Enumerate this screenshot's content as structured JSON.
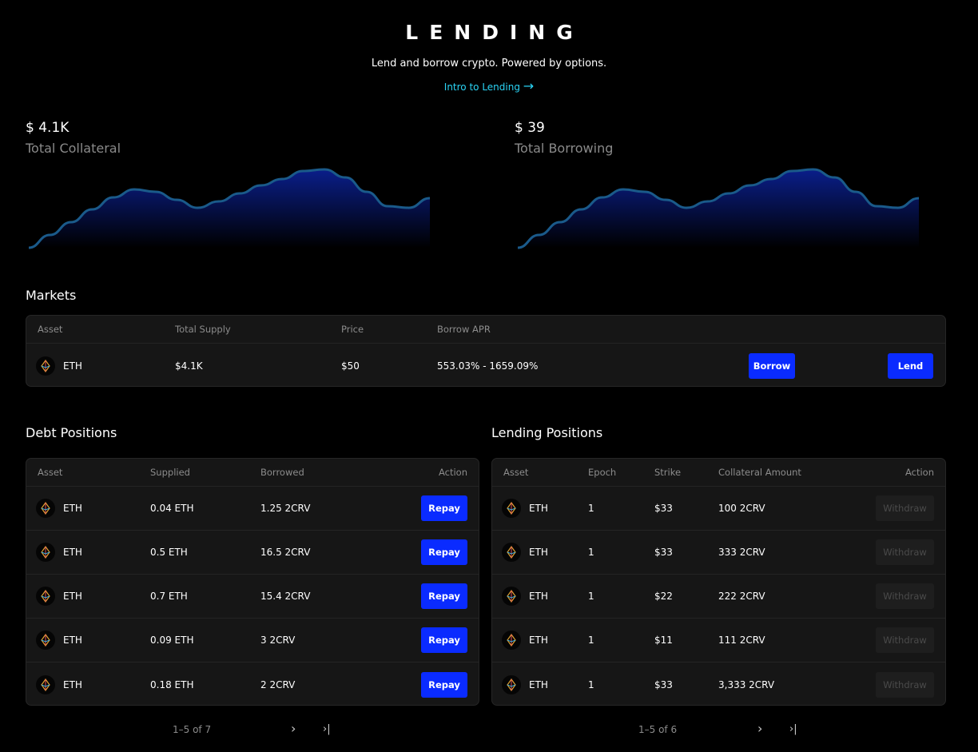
{
  "header": {
    "title": "LENDING",
    "subtitle": "Lend and borrow crypto. Powered by options.",
    "intro_link": "Intro to Lending"
  },
  "stats": [
    {
      "value": "$ 4.1K",
      "label": "Total Collateral"
    },
    {
      "value": "$ 39",
      "label": "Total Borrowing"
    }
  ],
  "sparkline": {
    "values": [
      0,
      16,
      32,
      48,
      63,
      73,
      70,
      60,
      50,
      58,
      68,
      78,
      86,
      96,
      98,
      88,
      70,
      52,
      50,
      62
    ]
  },
  "colors": {
    "accent": "#0a2bff",
    "link": "#2ad4f5",
    "chart_line": "#1a5a8a",
    "chart_fill": "#0a1e8a"
  },
  "markets": {
    "title": "Markets",
    "columns": [
      "Asset",
      "Total Supply",
      "Price",
      "Borrow APR"
    ],
    "rows": [
      {
        "asset": "ETH",
        "supply": "$4.1K",
        "price": "$50",
        "apr": "553.03% - 1659.09%"
      }
    ],
    "borrow_label": "Borrow",
    "lend_label": "Lend"
  },
  "debt": {
    "title": "Debt Positions",
    "columns": [
      "Asset",
      "Supplied",
      "Borrowed",
      "Action"
    ],
    "rows": [
      {
        "asset": "ETH",
        "supplied": "0.04 ETH",
        "borrowed": "1.25 2CRV"
      },
      {
        "asset": "ETH",
        "supplied": "0.5 ETH",
        "borrowed": "16.5 2CRV"
      },
      {
        "asset": "ETH",
        "supplied": "0.7 ETH",
        "borrowed": "15.4 2CRV"
      },
      {
        "asset": "ETH",
        "supplied": "0.09 ETH",
        "borrowed": "3 2CRV"
      },
      {
        "asset": "ETH",
        "supplied": "0.18 ETH",
        "borrowed": "2 2CRV"
      }
    ],
    "action_label": "Repay",
    "pagination": "1–5 of 7"
  },
  "lending": {
    "title": "Lending Positions",
    "columns": [
      "Asset",
      "Epoch",
      "Strike",
      "Collateral Amount",
      "Action"
    ],
    "rows": [
      {
        "asset": "ETH",
        "epoch": "1",
        "strike": "$33",
        "amount": "100 2CRV"
      },
      {
        "asset": "ETH",
        "epoch": "1",
        "strike": "$33",
        "amount": "333 2CRV"
      },
      {
        "asset": "ETH",
        "epoch": "1",
        "strike": "$22",
        "amount": "222 2CRV"
      },
      {
        "asset": "ETH",
        "epoch": "1",
        "strike": "$11",
        "amount": "111 2CRV"
      },
      {
        "asset": "ETH",
        "epoch": "1",
        "strike": "$33",
        "amount": "3,333 2CRV"
      }
    ],
    "action_label": "Withdraw",
    "pagination": "1–5 of 6"
  }
}
